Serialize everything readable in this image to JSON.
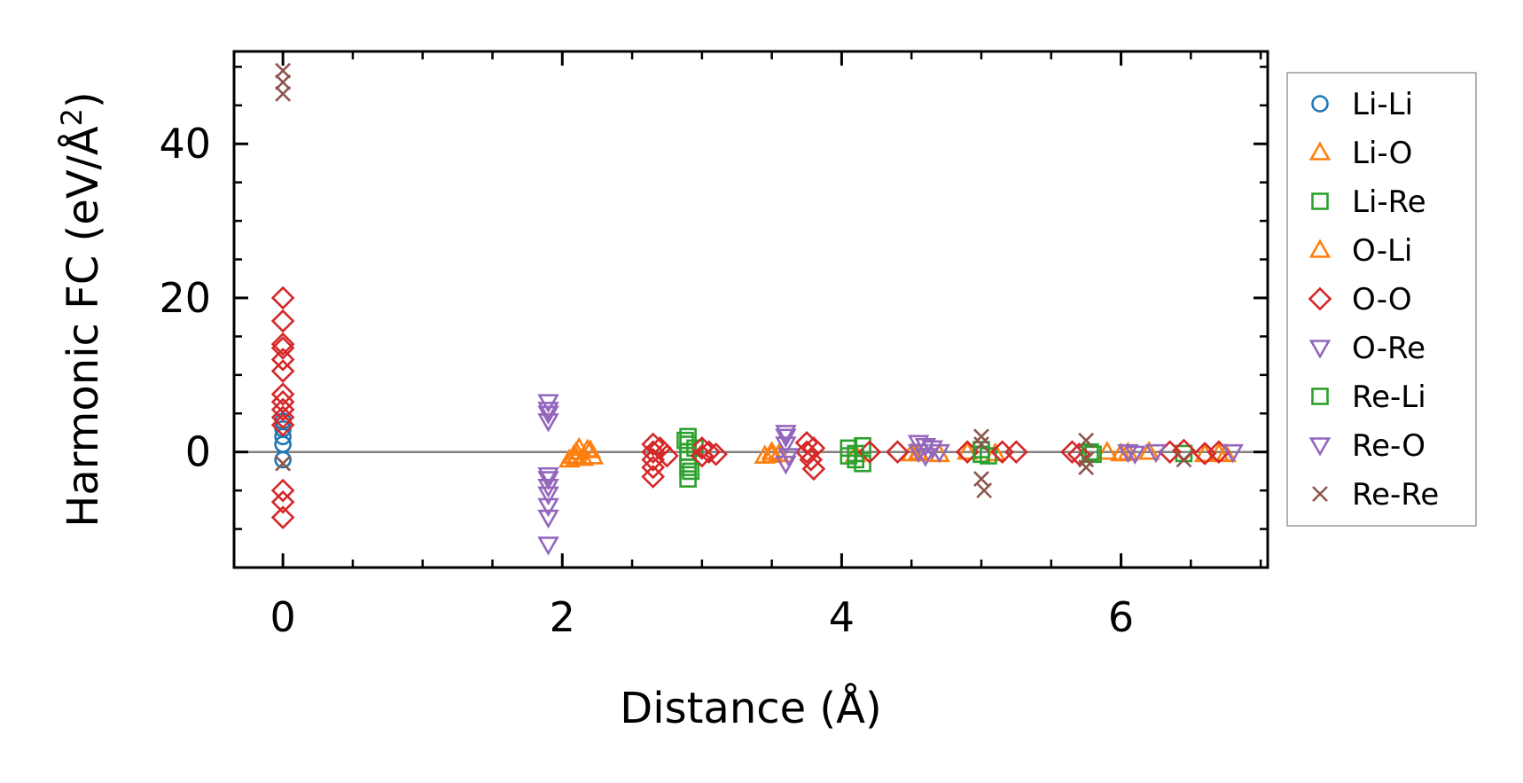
{
  "chart_data": {
    "type": "scatter",
    "title": "",
    "xlabel": "Distance (Å)",
    "ylabel_main": "Harmonic FC (eV/Å",
    "ylabel_sup": "2",
    "ylabel_close": ")",
    "xlim": [
      -0.35,
      7.05
    ],
    "ylim": [
      -15,
      52
    ],
    "x_ticks": [
      {
        "value": 0,
        "label": "0"
      },
      {
        "value": 2,
        "label": "2"
      },
      {
        "value": 4,
        "label": "4"
      },
      {
        "value": 6,
        "label": "6"
      }
    ],
    "x_minor_ticks": [
      0.5,
      1,
      1.5,
      2.5,
      3,
      3.5,
      4.5,
      5,
      5.5,
      6.5,
      7
    ],
    "y_ticks": [
      {
        "value": 0,
        "label": "0"
      },
      {
        "value": 20,
        "label": "20"
      },
      {
        "value": 40,
        "label": "40"
      }
    ],
    "y_minor_ticks": [
      -10,
      -5,
      5,
      10,
      15,
      25,
      30,
      35,
      45,
      50
    ],
    "zero_line": true,
    "legend_position": "outside-right",
    "series": [
      {
        "name": "Li-Li",
        "marker": "circle",
        "color": "#1f77b4",
        "points": [
          [
            0,
            4
          ],
          [
            0,
            3
          ],
          [
            0,
            2
          ],
          [
            0,
            1
          ],
          [
            0,
            -1
          ]
        ]
      },
      {
        "name": "Li-O",
        "marker": "triangle-up",
        "color": "#ff7f0e",
        "points": [
          [
            2.05,
            -1
          ],
          [
            2.08,
            -0.5
          ],
          [
            2.1,
            0
          ],
          [
            2.12,
            0.5
          ],
          [
            2.15,
            -0.8
          ],
          [
            2.18,
            0.3
          ],
          [
            2.22,
            -0.6
          ],
          [
            3.45,
            -0.5
          ],
          [
            3.5,
            0
          ],
          [
            3.55,
            -0.3
          ],
          [
            4.1,
            -0.3
          ],
          [
            4.5,
            -0.2
          ],
          [
            4.55,
            0
          ],
          [
            4.7,
            -0.3
          ],
          [
            4.9,
            0
          ],
          [
            5.1,
            -0.2
          ],
          [
            5.9,
            0
          ],
          [
            6.0,
            -0.2
          ],
          [
            6.2,
            0
          ],
          [
            6.6,
            -0.3
          ],
          [
            6.7,
            -0.2
          ]
        ]
      },
      {
        "name": "Li-Re",
        "marker": "square",
        "color": "#2ca02c",
        "points": [
          [
            2.9,
            2
          ],
          [
            2.9,
            1
          ],
          [
            2.9,
            0
          ],
          [
            2.9,
            -1
          ],
          [
            2.9,
            -2
          ],
          [
            2.9,
            -3.5
          ],
          [
            2.95,
            0.5
          ],
          [
            4.05,
            0.5
          ],
          [
            4.05,
            -0.5
          ],
          [
            4.1,
            -1
          ],
          [
            4.15,
            0.8
          ],
          [
            4.15,
            -1.5
          ],
          [
            5.0,
            0.3
          ],
          [
            5.05,
            -0.5
          ],
          [
            5.8,
            -0.3
          ],
          [
            6.45,
            -0.2
          ]
        ]
      },
      {
        "name": "O-Li",
        "marker": "triangle-up",
        "color": "#ff7f0e",
        "points": [
          [
            2.1,
            -0.7
          ],
          [
            2.2,
            0.2
          ],
          [
            3.5,
            -0.4
          ],
          [
            4.55,
            -0.2
          ],
          [
            6.05,
            -0.1
          ],
          [
            6.75,
            -0.3
          ]
        ]
      },
      {
        "name": "O-O",
        "marker": "diamond",
        "color": "#d62728",
        "points": [
          [
            0,
            20
          ],
          [
            0,
            17
          ],
          [
            0,
            14
          ],
          [
            0,
            13.5
          ],
          [
            0,
            12
          ],
          [
            0,
            10.5
          ],
          [
            0,
            7.5
          ],
          [
            0,
            6.5
          ],
          [
            0,
            5.5
          ],
          [
            0,
            4.5
          ],
          [
            0,
            3.5
          ],
          [
            0,
            -5
          ],
          [
            0,
            -6.5
          ],
          [
            0,
            -8.5
          ],
          [
            2.65,
            1
          ],
          [
            2.65,
            0
          ],
          [
            2.65,
            -1
          ],
          [
            2.65,
            -2
          ],
          [
            2.65,
            -3.2
          ],
          [
            2.7,
            0.5
          ],
          [
            2.75,
            -0.5
          ],
          [
            3.0,
            0.5
          ],
          [
            3.0,
            -0.5
          ],
          [
            3.05,
            0
          ],
          [
            3.1,
            -0.3
          ],
          [
            3.75,
            1.2
          ],
          [
            3.75,
            0
          ],
          [
            3.78,
            -1
          ],
          [
            3.8,
            -2.2
          ],
          [
            3.8,
            0.5
          ],
          [
            4.2,
            0
          ],
          [
            4.4,
            0
          ],
          [
            4.9,
            0
          ],
          [
            5.15,
            0
          ],
          [
            5.25,
            0
          ],
          [
            5.65,
            0
          ],
          [
            5.7,
            -0.3
          ],
          [
            6.35,
            0
          ],
          [
            6.45,
            0.2
          ],
          [
            6.6,
            -0.2
          ],
          [
            6.7,
            0
          ]
        ]
      },
      {
        "name": "O-Re",
        "marker": "triangle-down",
        "color": "#9467bd",
        "points": [
          [
            1.9,
            6.5
          ],
          [
            1.9,
            5.5
          ],
          [
            1.9,
            4
          ],
          [
            1.9,
            -3
          ],
          [
            1.9,
            -4.5
          ],
          [
            1.9,
            -5.5
          ],
          [
            1.9,
            -7
          ],
          [
            1.9,
            -8.5
          ],
          [
            1.9,
            -12
          ],
          [
            3.6,
            2.5
          ],
          [
            3.6,
            1
          ],
          [
            3.62,
            -0.5
          ],
          [
            3.6,
            -1.5
          ],
          [
            4.55,
            1.2
          ],
          [
            4.55,
            0
          ],
          [
            4.6,
            -0.5
          ],
          [
            4.65,
            0.5
          ],
          [
            4.7,
            0
          ],
          [
            6.05,
            0
          ],
          [
            6.25,
            0
          ],
          [
            6.8,
            0
          ]
        ]
      },
      {
        "name": "Re-Li",
        "marker": "square",
        "color": "#2ca02c",
        "points": [
          [
            2.88,
            1.5
          ],
          [
            2.92,
            -2.5
          ],
          [
            4.1,
            -0.2
          ],
          [
            5.0,
            -0.3
          ],
          [
            5.78,
            0
          ]
        ]
      },
      {
        "name": "Re-O",
        "marker": "triangle-down",
        "color": "#9467bd",
        "points": [
          [
            1.9,
            5
          ],
          [
            1.9,
            -3.5
          ],
          [
            3.6,
            2
          ],
          [
            4.6,
            0.8
          ],
          [
            6.1,
            -0.2
          ]
        ]
      },
      {
        "name": "Re-Re",
        "marker": "x",
        "color": "#8c564b",
        "points": [
          [
            0,
            49.5
          ],
          [
            0,
            48
          ],
          [
            0,
            46.5
          ],
          [
            0,
            -1.5
          ],
          [
            5.0,
            2
          ],
          [
            5.0,
            1
          ],
          [
            5.0,
            -3.5
          ],
          [
            5.02,
            -5
          ],
          [
            5.75,
            1.5
          ],
          [
            5.75,
            -1
          ],
          [
            5.75,
            -2
          ],
          [
            6.45,
            -1
          ]
        ]
      }
    ]
  }
}
